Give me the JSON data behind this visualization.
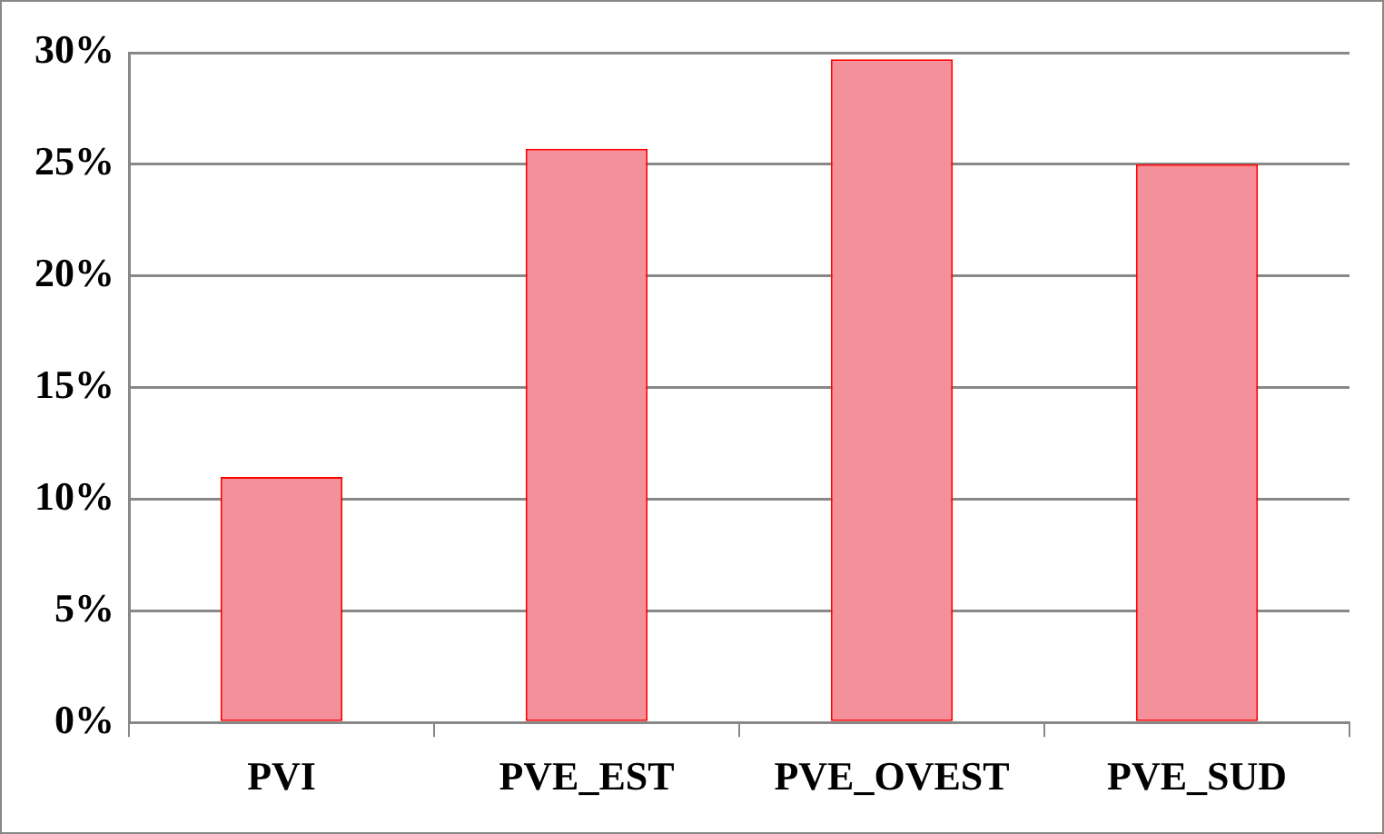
{
  "chart_data": {
    "type": "bar",
    "categories": [
      "PVI",
      "PVE_EST",
      "PVE_OVEST",
      "PVE_SUD"
    ],
    "values": [
      11.0,
      25.7,
      29.7,
      25.0
    ],
    "color": "#f4909a",
    "ylim": [
      0,
      30
    ],
    "yticks": [
      {
        "value": 0,
        "label": "0%"
      },
      {
        "value": 5,
        "label": "5%"
      },
      {
        "value": 10,
        "label": "10%"
      },
      {
        "value": 15,
        "label": "15%"
      },
      {
        "value": 20,
        "label": "20%"
      },
      {
        "value": 25,
        "label": "25%"
      },
      {
        "value": 30,
        "label": "30%"
      }
    ],
    "grid": "y",
    "legend": false
  }
}
